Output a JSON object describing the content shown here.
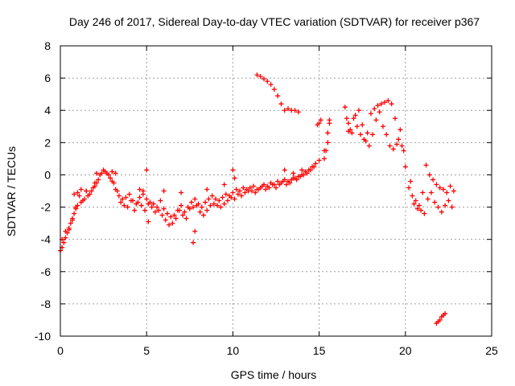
{
  "chart_data": {
    "type": "scatter",
    "title": "Day 246 of 2017, Sidereal Day-to-day VTEC variation (SDTVAR) for receiver p367",
    "xlabel": "GPS time / hours",
    "ylabel": "SDTVAR / TECUs",
    "xlim": [
      0,
      25
    ],
    "ylim": [
      -10,
      8
    ],
    "xticks": [
      0,
      5,
      10,
      15,
      20,
      25
    ],
    "yticks": [
      -10,
      -8,
      -6,
      -4,
      -2,
      0,
      2,
      4,
      6,
      8
    ],
    "xtick_labels": [
      "0",
      "5",
      "10",
      "15",
      "20",
      "25"
    ],
    "ytick_labels": [
      "-10",
      "-8",
      "-6",
      "-4",
      "-2",
      "0",
      "2",
      "4",
      "6",
      "8"
    ],
    "grid": true,
    "marker": "plus",
    "color": "#ff0000",
    "series": [
      {
        "name": "main",
        "x": [
          0.0,
          0.1,
          0.2,
          0.3,
          0.4,
          0.5,
          0.6,
          0.7,
          0.8,
          0.9,
          1.0,
          1.2,
          1.4,
          1.6,
          1.8,
          2.0,
          2.2,
          2.4,
          2.6,
          2.8,
          3.0,
          3.2,
          3.4,
          3.6,
          3.8,
          4.0,
          4.2,
          4.4,
          4.6,
          4.8,
          5.0,
          5.2,
          5.4,
          5.6,
          5.8,
          6.0,
          6.2,
          6.4,
          6.6,
          6.8,
          7.0,
          7.2,
          7.4,
          7.6,
          7.8,
          8.0,
          8.2,
          8.4,
          8.6,
          8.8,
          9.0,
          9.2,
          9.4,
          9.6,
          9.8,
          10.0,
          10.2,
          10.4,
          10.6,
          10.8,
          11.0,
          11.2,
          11.4,
          11.6,
          11.8,
          12.0,
          12.2,
          12.4,
          12.6,
          12.8,
          13.0,
          13.2,
          13.4,
          13.6,
          13.8,
          14.0,
          14.2,
          14.4,
          14.6,
          14.8,
          15.0
        ],
        "y": [
          -4.7,
          -4.5,
          -4.2,
          -3.9,
          -3.6,
          -3.3,
          -3.0,
          -2.7,
          -2.4,
          -2.1,
          -1.9,
          -1.7,
          -1.5,
          -1.3,
          -1.0,
          -0.7,
          -0.3,
          0.1,
          0.2,
          0.0,
          -0.4,
          -0.9,
          -1.3,
          -1.5,
          -1.4,
          -1.2,
          -1.6,
          -1.8,
          -1.4,
          -1.2,
          -1.5,
          -1.7,
          -1.8,
          -2.0,
          -1.6,
          -2.1,
          -2.4,
          -2.6,
          -2.5,
          -2.2,
          -1.9,
          -2.3,
          -2.0,
          -1.7,
          -1.5,
          -1.8,
          -2.0,
          -1.7,
          -1.5,
          -1.3,
          -1.5,
          -1.6,
          -1.4,
          -1.2,
          -1.3,
          -1.1,
          -0.9,
          -1.0,
          -0.8,
          -0.9,
          -0.8,
          -0.7,
          -0.9,
          -0.8,
          -0.6,
          -0.7,
          -0.5,
          -0.6,
          -0.4,
          -0.5,
          -0.3,
          -0.4,
          -0.3,
          -0.2,
          -0.1,
          0.0,
          0.2,
          0.3,
          0.5,
          0.7,
          0.9
        ]
      },
      {
        "name": "main-spread",
        "x": [
          0.1,
          0.3,
          0.5,
          0.7,
          0.9,
          1.1,
          1.3,
          1.5,
          1.7,
          1.9,
          2.1,
          2.3,
          2.5,
          2.7,
          2.9,
          3.1,
          3.3,
          3.5,
          3.7,
          3.9,
          4.1,
          4.3,
          4.5,
          4.7,
          4.9,
          5.1,
          5.3,
          5.5,
          5.7,
          5.9,
          6.1,
          6.3,
          6.5,
          6.7,
          6.9,
          7.1,
          7.3,
          7.5,
          7.7,
          7.9,
          8.1,
          8.3,
          8.5,
          8.7,
          8.9,
          9.1,
          9.3,
          9.5,
          9.7,
          9.9,
          10.1,
          10.3,
          10.5,
          10.7,
          10.9,
          11.1,
          11.3,
          11.5,
          11.7,
          11.9,
          12.1,
          12.3,
          12.5,
          12.7,
          12.9,
          13.1,
          13.3,
          13.5,
          13.7,
          13.9,
          14.1,
          14.3,
          14.5,
          14.7
        ],
        "y": [
          -4.0,
          -3.5,
          -3.4,
          -2.8,
          -2.0,
          -1.3,
          -1.6,
          -1.0,
          -1.2,
          -0.8,
          -0.5,
          0.0,
          0.3,
          0.1,
          -0.2,
          -0.5,
          -1.0,
          -1.7,
          -1.9,
          -2.0,
          -1.6,
          -2.2,
          -1.7,
          -1.9,
          -2.2,
          -1.8,
          -2.0,
          -2.3,
          -2.2,
          -2.5,
          -2.8,
          -3.1,
          -3.0,
          -2.7,
          -2.2,
          -2.5,
          -2.7,
          -2.1,
          -2.0,
          -1.9,
          -2.3,
          -2.5,
          -2.2,
          -1.9,
          -1.8,
          -1.9,
          -2.0,
          -1.8,
          -1.6,
          -1.4,
          -1.5,
          -1.2,
          -1.3,
          -1.1,
          -1.0,
          -1.0,
          -1.1,
          -0.9,
          -0.7,
          -0.9,
          -0.8,
          -0.6,
          -0.8,
          -0.6,
          -0.4,
          -0.6,
          -0.5,
          -0.2,
          -0.3,
          -0.1,
          0.0,
          0.1,
          0.3,
          0.5
        ]
      },
      {
        "name": "spikes",
        "x": [
          0.8,
          1.0,
          1.2,
          1.5,
          2.0,
          2.1,
          3.0,
          3.2,
          4.6,
          4.8,
          5.0,
          5.1,
          6.0,
          7.0,
          7.7,
          7.8,
          8.5,
          9.5,
          10.0,
          10.1,
          13.0,
          13.5,
          14.0
        ],
        "y": [
          -1.2,
          -1.1,
          -0.9,
          -1.0,
          -0.5,
          0.1,
          0.2,
          0.1,
          -0.9,
          -1.0,
          0.3,
          -2.9,
          -1.0,
          -1.1,
          -4.2,
          -3.5,
          -0.9,
          -0.6,
          0.3,
          -0.2,
          0.3,
          0.1,
          0.3
        ]
      },
      {
        "name": "arc-high",
        "x": [
          11.4,
          11.6,
          11.8,
          12.0,
          12.2,
          12.4,
          12.6,
          12.8,
          13.0,
          13.2,
          13.4,
          13.6,
          13.8
        ],
        "y": [
          6.2,
          6.1,
          5.95,
          5.8,
          5.6,
          5.3,
          4.9,
          4.4,
          4.0,
          4.1,
          4.0,
          4.0,
          3.9
        ]
      },
      {
        "name": "segment-15",
        "x": [
          14.9,
          15.0,
          15.1,
          15.3,
          15.4,
          15.5,
          15.6,
          15.5,
          15.6,
          15.3
        ],
        "y": [
          3.1,
          3.2,
          3.4,
          1.0,
          1.5,
          2.0,
          3.2,
          2.6,
          3.4,
          1.5
        ]
      },
      {
        "name": "segment-17-20",
        "x": [
          16.5,
          16.6,
          16.7,
          16.8,
          17.0,
          17.2,
          17.4,
          17.6,
          17.8,
          18.0,
          18.2,
          18.4,
          18.6,
          18.8,
          19.0,
          19.2,
          19.4,
          19.6,
          19.8,
          19.9,
          16.7,
          16.9,
          17.1,
          17.3,
          17.5,
          17.7,
          17.9,
          18.1,
          18.3,
          18.5,
          18.7,
          18.9,
          19.1,
          19.3,
          19.5,
          19.7
        ],
        "y": [
          4.2,
          3.5,
          3.2,
          2.8,
          3.5,
          3.0,
          2.5,
          2.2,
          2.6,
          3.8,
          4.1,
          4.3,
          4.4,
          4.5,
          4.6,
          4.4,
          3.5,
          2.2,
          1.8,
          1.5,
          2.7,
          2.6,
          3.7,
          4.0,
          3.1,
          2.1,
          1.8,
          2.5,
          3.4,
          3.9,
          3.0,
          2.5,
          1.8,
          1.6,
          1.9,
          2.8
        ]
      },
      {
        "name": "segment-20-23",
        "x": [
          20.0,
          20.2,
          20.4,
          20.6,
          20.8,
          21.0,
          21.2,
          21.4,
          21.6,
          21.8,
          22.0,
          22.2,
          22.4,
          22.6,
          22.8,
          20.3,
          20.5,
          20.7,
          20.9,
          21.1,
          21.3,
          21.5,
          21.7,
          21.9,
          22.1,
          22.3,
          22.5,
          22.7
        ],
        "y": [
          0.5,
          -0.8,
          -1.3,
          -1.6,
          -1.9,
          -1.1,
          0.6,
          0.0,
          -0.3,
          -0.6,
          -0.8,
          -0.9,
          -1.1,
          -0.7,
          -1.0,
          -0.4,
          -1.8,
          -2.1,
          -2.2,
          -2.4,
          -1.5,
          -1.1,
          -1.7,
          -2.0,
          -2.3,
          -1.9,
          -1.6,
          -2.0
        ]
      },
      {
        "name": "outlier-22",
        "x": [
          21.8,
          21.9,
          22.0,
          22.1,
          22.2,
          22.3
        ],
        "y": [
          -9.2,
          -9.1,
          -9.0,
          -8.8,
          -8.7,
          -8.6
        ]
      }
    ]
  }
}
